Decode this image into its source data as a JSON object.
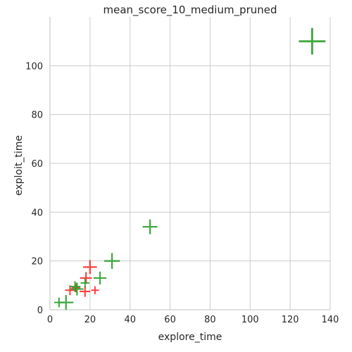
{
  "chart_data": {
    "type": "scatter",
    "title": "mean_score_10_medium_pruned",
    "xlabel": "explore_time",
    "ylabel": "exploit_time",
    "xlim": [
      0,
      140
    ],
    "ylim": [
      0,
      120
    ],
    "xticks": [
      0,
      20,
      40,
      60,
      80,
      100,
      120,
      140
    ],
    "yticks": [
      0,
      20,
      40,
      60,
      80,
      100
    ],
    "grid": true,
    "marker": "plus",
    "series": [
      {
        "color": "#ff2a2a",
        "points": [
          {
            "x": 10,
            "y": 8,
            "size": 1.0
          },
          {
            "x": 13,
            "y": 9,
            "size": 0.9
          },
          {
            "x": 17.5,
            "y": 7.5,
            "size": 1.1
          },
          {
            "x": 18,
            "y": 13,
            "size": 1.2
          },
          {
            "x": 20,
            "y": 17.5,
            "size": 1.4
          },
          {
            "x": 22.5,
            "y": 8,
            "size": 0.8
          }
        ]
      },
      {
        "color": "#2ca02c",
        "points": [
          {
            "x": 4.5,
            "y": 3,
            "size": 1.0
          },
          {
            "x": 8,
            "y": 3,
            "size": 1.5
          },
          {
            "x": 12.5,
            "y": 9.5,
            "size": 1.1
          },
          {
            "x": 13.5,
            "y": 8.5,
            "size": 1.3
          },
          {
            "x": 17.5,
            "y": 11,
            "size": 0.9
          },
          {
            "x": 25,
            "y": 13,
            "size": 1.3
          },
          {
            "x": 31,
            "y": 20,
            "size": 1.6
          },
          {
            "x": 50,
            "y": 34,
            "size": 1.5
          },
          {
            "x": 131,
            "y": 110,
            "size": 2.7
          }
        ]
      }
    ]
  }
}
